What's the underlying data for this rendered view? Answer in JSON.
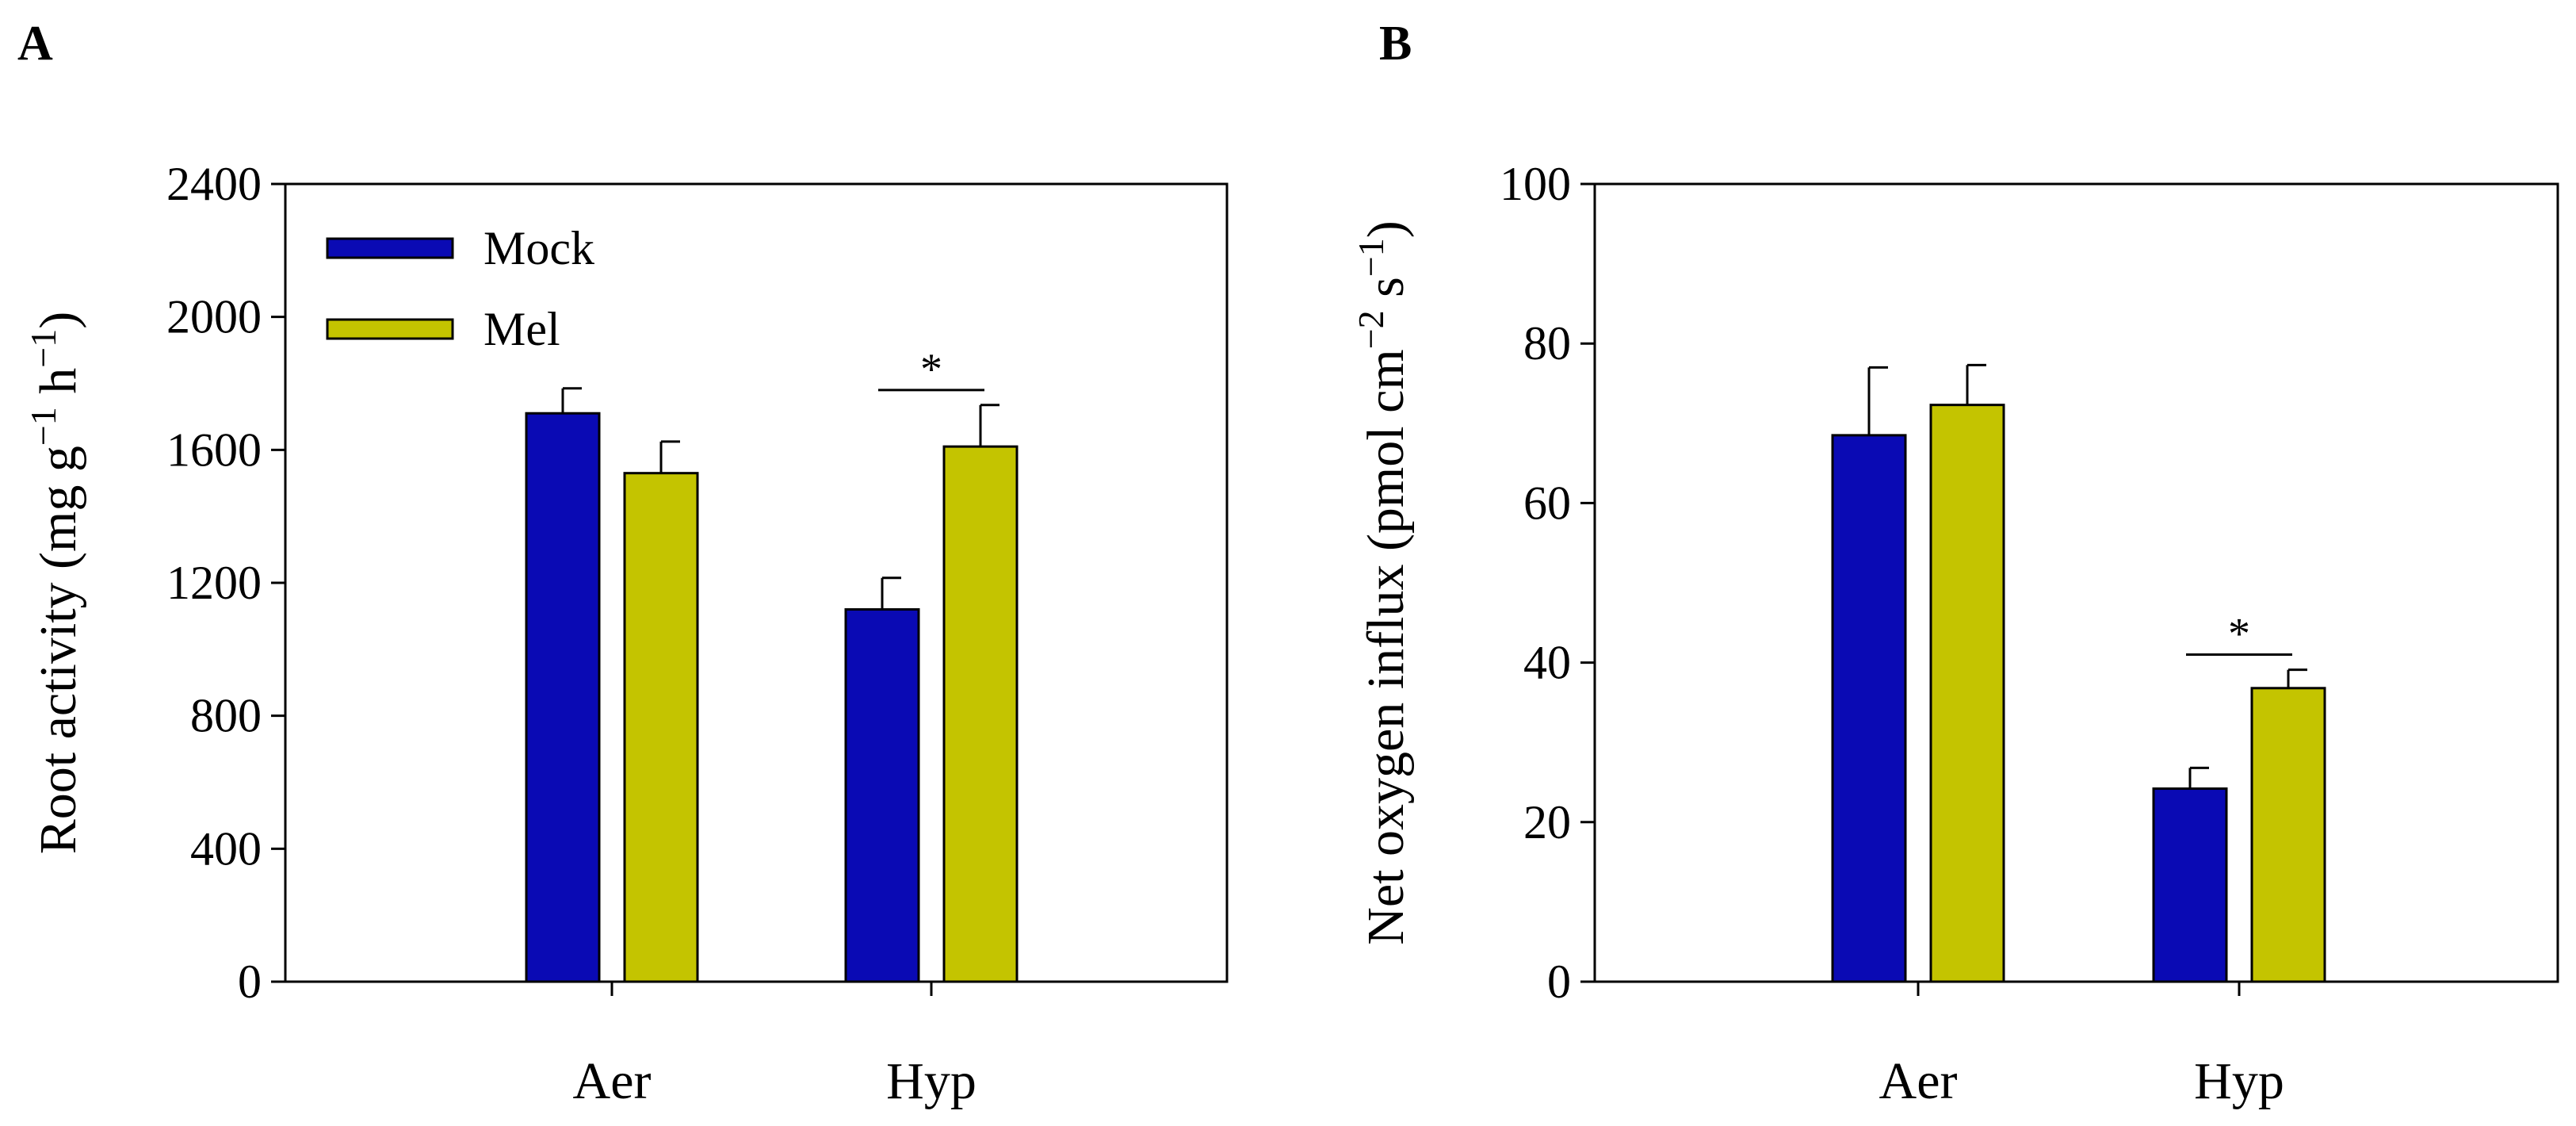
{
  "colors": {
    "mock": "#0a0ab4",
    "mel": "#c4c400",
    "axis": "#000000"
  },
  "chart_data": [
    {
      "panel_label": "A",
      "type": "bar",
      "title": "",
      "xlabel": "",
      "ylabel": {
        "parts": [
          {
            "text": "Root activity (mg g",
            "sup": false
          },
          {
            "text": "−1",
            "sup": true
          },
          {
            "text": " h",
            "sup": false
          },
          {
            "text": "−1",
            "sup": true
          },
          {
            "text": ")",
            "sup": false
          }
        ]
      },
      "ylim": [
        0,
        2400
      ],
      "yticks": [
        0,
        400,
        800,
        1200,
        1600,
        2000,
        2400
      ],
      "categories": [
        "Aer",
        "Hyp"
      ],
      "series": [
        {
          "name": "Mock",
          "values": [
            1710,
            1120
          ],
          "errors": [
            75,
            95
          ]
        },
        {
          "name": "Mel",
          "values": [
            1530,
            1610
          ],
          "errors": [
            95,
            125
          ]
        }
      ],
      "legend": {
        "show": true,
        "position": "top-left",
        "entries": [
          "Mock",
          "Mel"
        ]
      },
      "annotations": [
        {
          "text": "*",
          "category": "Hyp",
          "y": 1780
        }
      ]
    },
    {
      "panel_label": "B",
      "type": "bar",
      "title": "",
      "xlabel": "",
      "ylabel": {
        "parts": [
          {
            "text": "Net oxygen influx (pmol cm",
            "sup": false
          },
          {
            "text": "−2",
            "sup": true
          },
          {
            "text": " s",
            "sup": false
          },
          {
            "text": "−1",
            "sup": true
          },
          {
            "text": ")",
            "sup": false
          }
        ]
      },
      "ylim": [
        0,
        100
      ],
      "yticks": [
        0,
        20,
        40,
        60,
        80,
        100
      ],
      "categories": [
        "Aer",
        "Hyp"
      ],
      "series": [
        {
          "name": "Mock",
          "values": [
            68.5,
            24.2
          ],
          "errors": [
            8.5,
            2.6
          ]
        },
        {
          "name": "Mel",
          "values": [
            72.3,
            36.8
          ],
          "errors": [
            5.0,
            2.3
          ]
        }
      ],
      "legend": {
        "show": false
      },
      "annotations": [
        {
          "text": "*",
          "category": "Hyp",
          "y": 41
        }
      ]
    }
  ]
}
